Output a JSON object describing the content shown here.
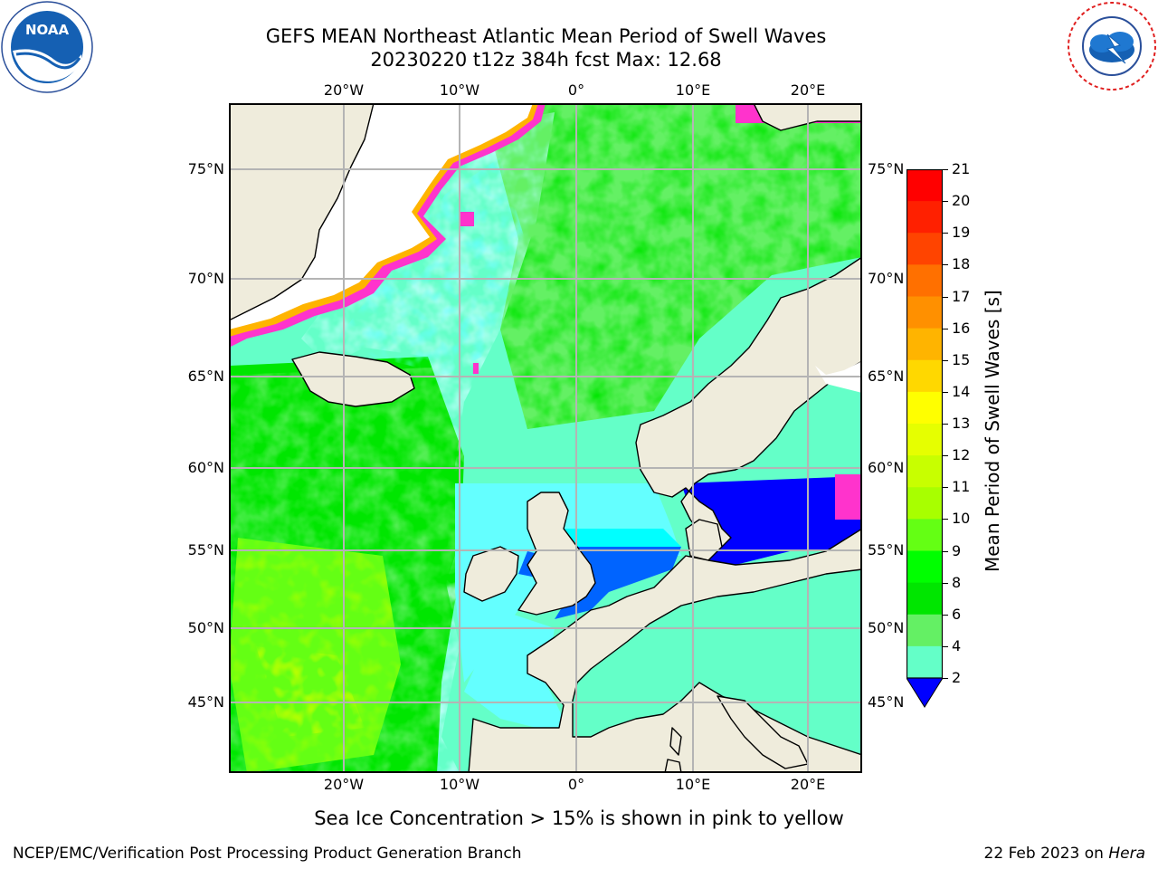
{
  "title": {
    "line1": "GEFS MEAN Northeast Atlantic Mean Period of Swell Waves",
    "line2": "20230220 t12z 384h fcst   Max: 12.68"
  },
  "logos": {
    "noaa": {
      "text": "NOAA",
      "ring_text": "NATIONAL OCEANIC AND ATMOSPHERIC ADMINISTRATION · U.S. DEPARTMENT OF COMMERCE"
    },
    "nws": {
      "ring_text": "NATIONAL WEATHER SERVICE"
    }
  },
  "map": {
    "region": "Northeast Atlantic",
    "lon_range": [
      -30,
      25
    ],
    "lat_range": [
      41,
      78
    ],
    "lon_ticks": [
      "20°W",
      "10°W",
      "0°",
      "10°E",
      "20°E"
    ],
    "lat_ticks": [
      "75°N",
      "70°N",
      "65°N",
      "60°N",
      "55°N",
      "50°N",
      "45°N"
    ],
    "grid": true,
    "colors": {
      "land": "#efecdc",
      "coast": "#000000",
      "grid": "#b4b4b4",
      "open_sea_no_data": "#ffffff"
    }
  },
  "colorbar": {
    "label": "Mean Period of Swell Waves [s]",
    "ticks": [
      "21",
      "20",
      "19",
      "18",
      "17",
      "16",
      "15",
      "14",
      "13",
      "12",
      "11",
      "10",
      "9",
      "8",
      "6",
      "4",
      "2"
    ],
    "extend": "min",
    "colors": [
      "#ff0000",
      "#ff2000",
      "#ff4400",
      "#ff7000",
      "#ff9000",
      "#ffb400",
      "#ffd800",
      "#ffff00",
      "#e6ff00",
      "#c8ff00",
      "#a8ff00",
      "#64ff14",
      "#00ff00",
      "#00e600",
      "#64f064",
      "#64ffc8",
      "#c8ffff",
      "#64ffff",
      "#00ffff",
      "#00b4ff",
      "#0064ff",
      "#0000ff"
    ]
  },
  "caption": "Sea Ice Concentration > 15% is shown in pink to yellow",
  "footer": {
    "left": "NCEP/EMC/Verification Post Processing Product Generation Branch",
    "right_prefix": "22 Feb 2023 on ",
    "right_machine": "Hera"
  }
}
